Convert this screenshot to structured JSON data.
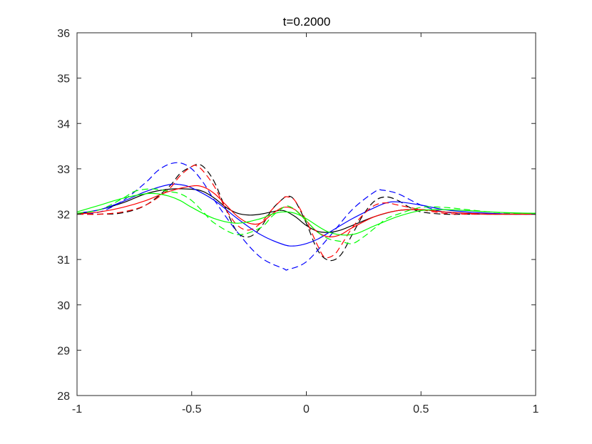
{
  "chart_data": {
    "type": "line",
    "title": "t=0.2000",
    "xlabel": "",
    "ylabel": "",
    "xlim": [
      -1,
      1
    ],
    "ylim": [
      28,
      36
    ],
    "x_ticks": [
      -1,
      -0.5,
      0,
      0.5,
      1
    ],
    "x_tick_labels": [
      "-1",
      "-0.5",
      "0",
      "0.5",
      "1"
    ],
    "y_ticks": [
      28,
      29,
      30,
      31,
      32,
      33,
      34,
      35,
      36
    ],
    "y_tick_labels": [
      "28",
      "29",
      "30",
      "31",
      "32",
      "33",
      "34",
      "35",
      "36"
    ],
    "grid": false,
    "legend": false,
    "series": [
      {
        "color": "#000000",
        "style": "solid",
        "x": [
          -1,
          -0.9,
          -0.8,
          -0.7,
          -0.6,
          -0.5,
          -0.45,
          -0.4,
          -0.35,
          -0.3,
          -0.25,
          -0.2,
          -0.15,
          -0.1,
          -0.05,
          0,
          0.05,
          0.1,
          0.15,
          0.2,
          0.3,
          0.4,
          0.5,
          0.6,
          0.7,
          0.8,
          0.9,
          1
        ],
        "y": [
          32.0,
          32.1,
          32.25,
          32.45,
          32.55,
          32.55,
          32.5,
          32.35,
          32.15,
          32.02,
          31.98,
          32.0,
          32.05,
          32.08,
          31.95,
          31.75,
          31.62,
          31.6,
          31.65,
          31.75,
          31.95,
          32.08,
          32.1,
          32.05,
          32.02,
          32.0,
          32.0,
          32.0
        ]
      },
      {
        "color": "#000000",
        "style": "dashed",
        "x": [
          -1,
          -0.9,
          -0.8,
          -0.7,
          -0.6,
          -0.55,
          -0.5,
          -0.47,
          -0.44,
          -0.4,
          -0.35,
          -0.3,
          -0.25,
          -0.2,
          -0.15,
          -0.1,
          -0.08,
          -0.05,
          0,
          0.05,
          0.1,
          0.15,
          0.2,
          0.25,
          0.3,
          0.35,
          0.4,
          0.45,
          0.5,
          0.6,
          0.7,
          0.8,
          0.9,
          1
        ],
        "y": [
          32.0,
          32.0,
          32.03,
          32.2,
          32.6,
          32.9,
          33.05,
          33.1,
          33.0,
          32.7,
          32.1,
          31.6,
          31.5,
          31.7,
          32.1,
          32.35,
          32.4,
          32.3,
          31.8,
          31.2,
          30.98,
          31.1,
          31.55,
          32.0,
          32.3,
          32.38,
          32.3,
          32.15,
          32.05,
          32.0,
          32.0,
          32.0,
          32.0,
          32.0
        ]
      },
      {
        "color": "#0000ff",
        "style": "solid",
        "x": [
          -1,
          -0.9,
          -0.8,
          -0.7,
          -0.6,
          -0.55,
          -0.5,
          -0.4,
          -0.3,
          -0.2,
          -0.1,
          -0.05,
          0,
          0.05,
          0.1,
          0.2,
          0.3,
          0.35,
          0.4,
          0.5,
          0.6,
          0.7,
          0.8,
          0.9,
          1
        ],
        "y": [
          32.02,
          32.1,
          32.28,
          32.5,
          32.65,
          32.65,
          32.58,
          32.3,
          31.9,
          31.55,
          31.33,
          31.3,
          31.35,
          31.45,
          31.6,
          31.9,
          32.15,
          32.25,
          32.27,
          32.2,
          32.1,
          32.05,
          32.02,
          32.0,
          32.0
        ]
      },
      {
        "color": "#0000ff",
        "style": "dashed",
        "x": [
          -1,
          -0.9,
          -0.8,
          -0.7,
          -0.65,
          -0.6,
          -0.55,
          -0.5,
          -0.45,
          -0.4,
          -0.3,
          -0.2,
          -0.1,
          -0.08,
          0,
          0.1,
          0.2,
          0.3,
          0.33,
          0.4,
          0.5,
          0.6,
          0.7,
          0.8,
          0.9,
          1
        ],
        "y": [
          32.0,
          32.05,
          32.3,
          32.7,
          32.95,
          33.1,
          33.13,
          33.0,
          32.7,
          32.3,
          31.6,
          31.05,
          30.8,
          30.78,
          30.95,
          31.5,
          32.1,
          32.5,
          32.53,
          32.45,
          32.2,
          32.05,
          32.02,
          32.0,
          32.0,
          32.0
        ]
      },
      {
        "color": "#ff0000",
        "style": "solid",
        "x": [
          -1,
          -0.9,
          -0.8,
          -0.7,
          -0.6,
          -0.5,
          -0.45,
          -0.4,
          -0.35,
          -0.3,
          -0.25,
          -0.2,
          -0.15,
          -0.1,
          -0.05,
          0,
          0.05,
          0.1,
          0.15,
          0.2,
          0.3,
          0.4,
          0.5,
          0.6,
          0.7,
          0.8,
          0.9,
          1
        ],
        "y": [
          32.0,
          32.05,
          32.15,
          32.3,
          32.5,
          32.62,
          32.6,
          32.45,
          32.2,
          31.95,
          31.8,
          31.8,
          32.0,
          32.15,
          32.1,
          31.85,
          31.6,
          31.5,
          31.55,
          31.7,
          31.95,
          32.08,
          32.1,
          32.05,
          32.02,
          32.0,
          32.0,
          32.0
        ]
      },
      {
        "color": "#ff0000",
        "style": "dashed",
        "x": [
          -1,
          -0.9,
          -0.8,
          -0.7,
          -0.6,
          -0.55,
          -0.5,
          -0.48,
          -0.45,
          -0.4,
          -0.35,
          -0.3,
          -0.25,
          -0.2,
          -0.15,
          -0.1,
          -0.08,
          -0.05,
          0,
          0.05,
          0.08,
          0.12,
          0.15,
          0.2,
          0.25,
          0.3,
          0.35,
          0.4,
          0.5,
          0.6,
          0.7,
          0.8,
          0.9,
          1
        ],
        "y": [
          32.0,
          32.0,
          32.05,
          32.2,
          32.55,
          32.85,
          33.05,
          33.07,
          32.95,
          32.6,
          32.1,
          31.75,
          31.65,
          31.8,
          32.1,
          32.35,
          32.38,
          32.3,
          31.85,
          31.3,
          31.05,
          31.1,
          31.3,
          31.7,
          32.0,
          32.2,
          32.25,
          32.2,
          32.1,
          32.02,
          32.0,
          32.0,
          32.0,
          32.0
        ]
      },
      {
        "color": "#00ff00",
        "style": "solid",
        "x": [
          -1,
          -0.9,
          -0.8,
          -0.7,
          -0.65,
          -0.6,
          -0.55,
          -0.5,
          -0.4,
          -0.3,
          -0.2,
          -0.15,
          -0.1,
          -0.05,
          0,
          0.1,
          0.2,
          0.3,
          0.4,
          0.5,
          0.6,
          0.7,
          0.8,
          0.9,
          1
        ],
        "y": [
          32.05,
          32.2,
          32.35,
          32.45,
          32.45,
          32.4,
          32.3,
          32.15,
          31.9,
          31.8,
          31.9,
          32.0,
          32.05,
          32.02,
          31.9,
          31.6,
          31.55,
          31.75,
          31.95,
          32.08,
          32.1,
          32.08,
          32.05,
          32.03,
          32.02
        ]
      },
      {
        "color": "#00ff00",
        "style": "dashed",
        "x": [
          -1,
          -0.9,
          -0.8,
          -0.75,
          -0.7,
          -0.65,
          -0.6,
          -0.55,
          -0.5,
          -0.45,
          -0.4,
          -0.3,
          -0.2,
          -0.15,
          -0.1,
          -0.08,
          -0.05,
          0,
          0.05,
          0.1,
          0.15,
          0.2,
          0.25,
          0.3,
          0.35,
          0.4,
          0.5,
          0.6,
          0.7,
          0.8,
          0.9,
          1
        ],
        "y": [
          32.02,
          32.1,
          32.35,
          32.5,
          32.55,
          32.55,
          32.5,
          32.45,
          32.3,
          32.05,
          31.8,
          31.55,
          31.7,
          31.95,
          32.15,
          32.18,
          32.1,
          31.85,
          31.6,
          31.45,
          31.4,
          31.35,
          31.5,
          31.7,
          31.9,
          32.0,
          32.15,
          32.15,
          32.1,
          32.05,
          32.02,
          32.02
        ]
      }
    ]
  }
}
